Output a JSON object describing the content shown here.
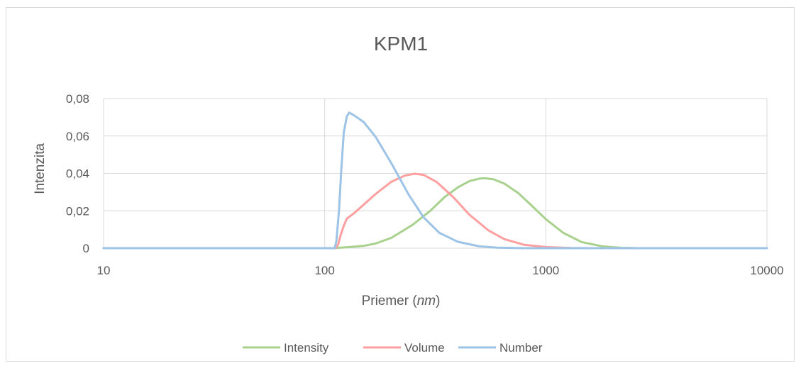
{
  "chart_data": {
    "type": "line",
    "title": "KPM1",
    "xlabel_prefix": "Priemer (",
    "xlabel_unit": "nm",
    "xlabel_suffix": ")",
    "ylabel": "Intenzita",
    "x_scale": "log",
    "xlim": [
      10,
      10000
    ],
    "ylim": [
      0,
      0.08
    ],
    "x_ticks": [
      "10",
      "100",
      "1000",
      "10000"
    ],
    "y_ticks": [
      "0",
      "0,02",
      "0,04",
      "0,06",
      "0,08"
    ],
    "grid": true,
    "legend_position": "bottom",
    "series": [
      {
        "name": "Intensity",
        "color": "#a9d18e",
        "points": [
          [
            10,
            0
          ],
          [
            110,
            0
          ],
          [
            115,
            0.0002
          ],
          [
            130,
            0.0006
          ],
          [
            150,
            0.0012
          ],
          [
            170,
            0.0025
          ],
          [
            200,
            0.0055
          ],
          [
            250,
            0.0125
          ],
          [
            300,
            0.02
          ],
          [
            350,
            0.0275
          ],
          [
            400,
            0.0325
          ],
          [
            450,
            0.0358
          ],
          [
            500,
            0.0372
          ],
          [
            530,
            0.0374
          ],
          [
            580,
            0.0368
          ],
          [
            650,
            0.0345
          ],
          [
            750,
            0.0295
          ],
          [
            850,
            0.0235
          ],
          [
            1000,
            0.0155
          ],
          [
            1200,
            0.0082
          ],
          [
            1450,
            0.0033
          ],
          [
            1800,
            0.001
          ],
          [
            2200,
            0.0002
          ],
          [
            2600,
            0
          ],
          [
            10000,
            0
          ]
        ]
      },
      {
        "name": "Volume",
        "color": "#ff9f9f",
        "points": [
          [
            10,
            0
          ],
          [
            112,
            0
          ],
          [
            115,
            0.002
          ],
          [
            118,
            0.007
          ],
          [
            122,
            0.012
          ],
          [
            126,
            0.0158
          ],
          [
            135,
            0.0185
          ],
          [
            150,
            0.0232
          ],
          [
            170,
            0.029
          ],
          [
            200,
            0.0355
          ],
          [
            230,
            0.0388
          ],
          [
            255,
            0.0398
          ],
          [
            280,
            0.0392
          ],
          [
            320,
            0.0355
          ],
          [
            380,
            0.0275
          ],
          [
            450,
            0.018
          ],
          [
            550,
            0.0095
          ],
          [
            650,
            0.0048
          ],
          [
            800,
            0.0018
          ],
          [
            1000,
            0.0006
          ],
          [
            1300,
            0.0001
          ],
          [
            1600,
            0
          ],
          [
            10000,
            0
          ]
        ]
      },
      {
        "name": "Number",
        "color": "#9dc3e6",
        "points": [
          [
            10,
            0
          ],
          [
            111,
            0
          ],
          [
            113,
            0.004
          ],
          [
            116,
            0.02
          ],
          [
            119,
            0.043
          ],
          [
            122,
            0.062
          ],
          [
            126,
            0.0705
          ],
          [
            129,
            0.0725
          ],
          [
            135,
            0.0712
          ],
          [
            150,
            0.0675
          ],
          [
            170,
            0.0595
          ],
          [
            200,
            0.0455
          ],
          [
            240,
            0.0285
          ],
          [
            280,
            0.0165
          ],
          [
            330,
            0.0082
          ],
          [
            400,
            0.0034
          ],
          [
            500,
            0.001
          ],
          [
            600,
            0.0003
          ],
          [
            800,
            0
          ],
          [
            10000,
            0
          ]
        ]
      }
    ]
  }
}
